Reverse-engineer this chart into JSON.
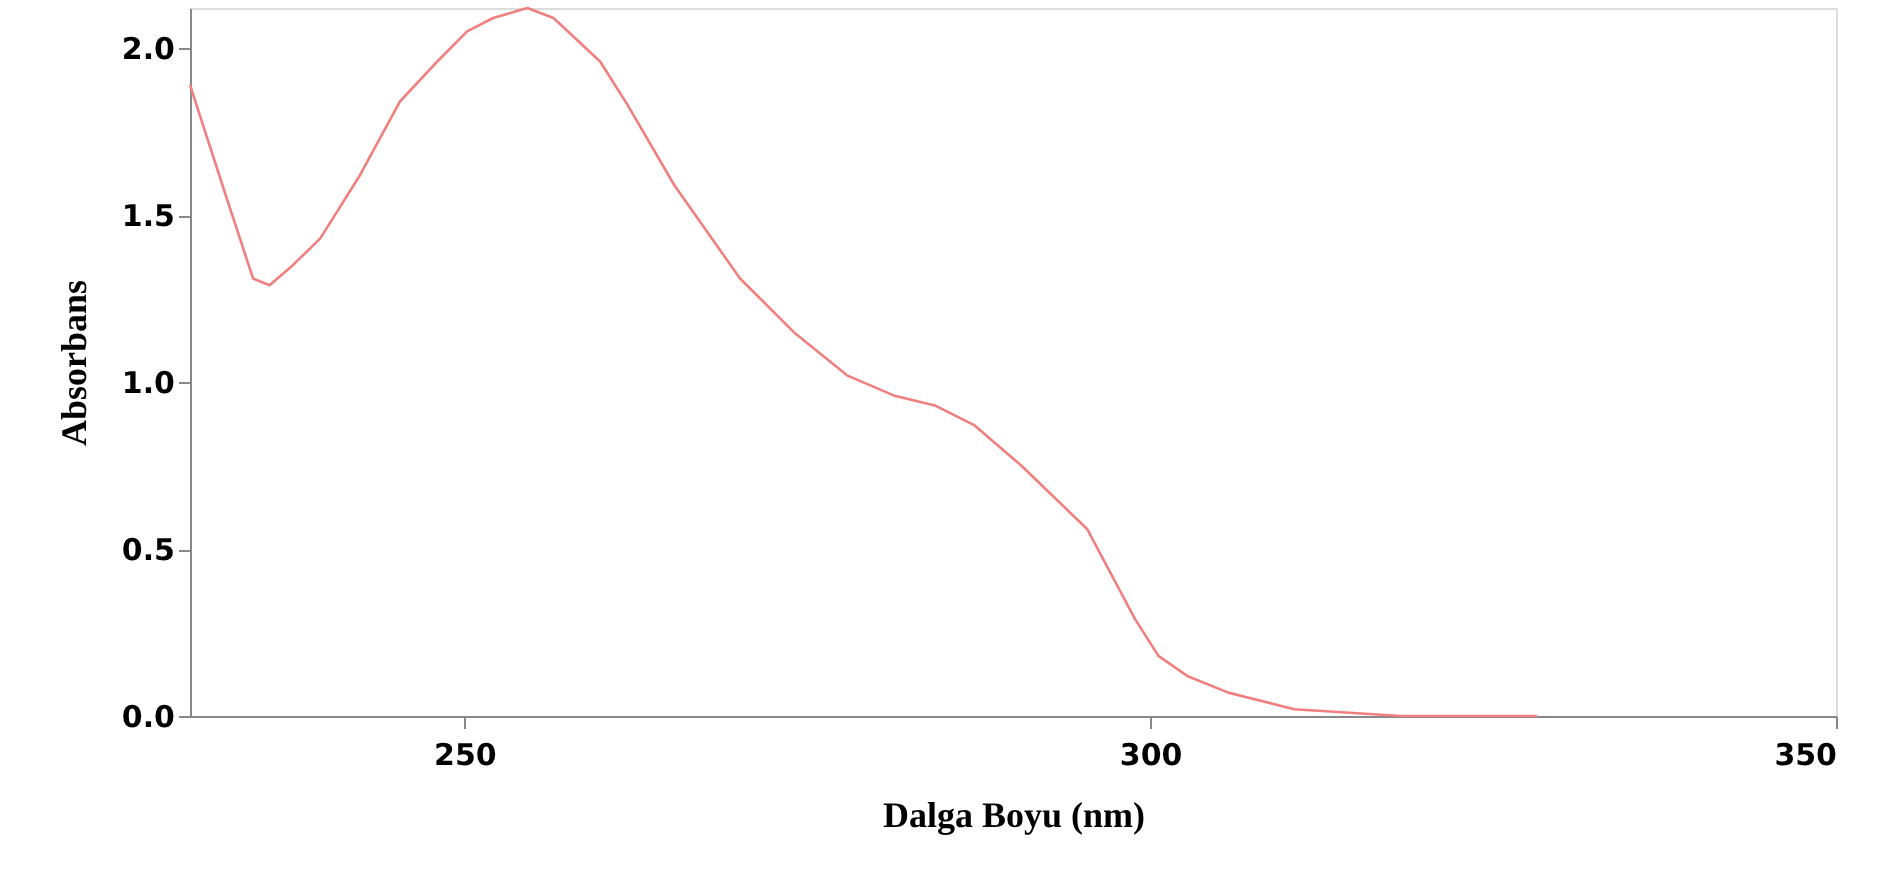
{
  "chart_data": {
    "type": "line",
    "xlabel": "Dalga Boyu (nm)",
    "ylabel": "Absorbans",
    "xlim": [
      230,
      350
    ],
    "xticks": [
      250,
      300,
      350
    ],
    "ylim": [
      0,
      2.12
    ],
    "yticks": [
      {
        "value": 0,
        "label": "0.0"
      },
      {
        "value": 0.5,
        "label": "0.5"
      },
      {
        "value": 1,
        "label": "1.0"
      },
      {
        "value": 1.5,
        "label": "1.5"
      },
      {
        "value": 2,
        "label": "2.0"
      }
    ],
    "grid": false,
    "line_style": "solid",
    "series": [
      {
        "color": "#f08080",
        "x": [
          230,
          232.6,
          234.6,
          235.8,
          237.5,
          239.5,
          242.4,
          245.3,
          247.8,
          250.2,
          252.1,
          254.6,
          256.5,
          259.9,
          261.9,
          265.3,
          270.1,
          274.0,
          277.9,
          281.3,
          284.3,
          287.2,
          290.6,
          295.4,
          298.9,
          300.6,
          302.7,
          305.7,
          310.5,
          318.3,
          328.2
        ],
        "values": [
          1.89,
          1.56,
          1.31,
          1.29,
          1.35,
          1.43,
          1.62,
          1.84,
          1.95,
          2.05,
          2.09,
          2.12,
          2.09,
          1.96,
          1.83,
          1.59,
          1.31,
          1.15,
          1.02,
          0.96,
          0.93,
          0.87,
          0.75,
          0.56,
          0.29,
          0.18,
          0.12,
          0.07,
          0.02,
          0.0,
          0.0
        ]
      }
    ]
  }
}
